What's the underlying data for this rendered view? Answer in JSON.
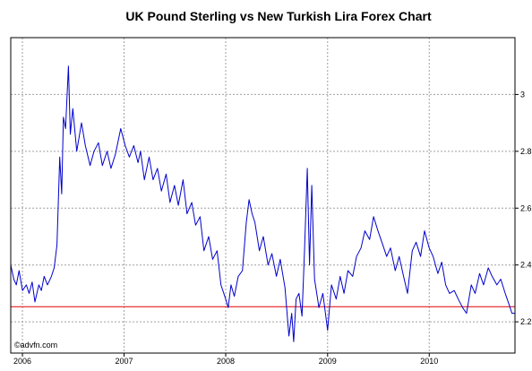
{
  "chart_data": {
    "type": "line",
    "title": "UK Pound Sterling vs New Turkish Lira Forex Chart",
    "watermark": "©advfn.com",
    "xlabel": "",
    "ylabel": "",
    "x_ticks": [
      "2006",
      "2007",
      "2008",
      "2009",
      "2010"
    ],
    "y_ticks": [
      "2.2",
      "2.4",
      "2.6",
      "2.8",
      "3"
    ],
    "y_tick_values": [
      2.2,
      2.4,
      2.6,
      2.8,
      3.0
    ],
    "xlim": [
      "2005-11-20",
      "2010-11-05"
    ],
    "ylim": [
      2.09,
      3.2
    ],
    "grid": true,
    "reference_line": {
      "value": 2.253,
      "color": "#e00000"
    },
    "series": [
      {
        "color": "#0000cc",
        "points": [
          [
            "2005-11-20",
            2.4
          ],
          [
            "2005-12-01",
            2.35
          ],
          [
            "2005-12-10",
            2.33
          ],
          [
            "2005-12-20",
            2.38
          ],
          [
            "2006-01-01",
            2.31
          ],
          [
            "2006-01-15",
            2.33
          ],
          [
            "2006-01-25",
            2.3
          ],
          [
            "2006-02-05",
            2.34
          ],
          [
            "2006-02-15",
            2.27
          ],
          [
            "2006-03-01",
            2.33
          ],
          [
            "2006-03-10",
            2.31
          ],
          [
            "2006-03-20",
            2.36
          ],
          [
            "2006-04-01",
            2.33
          ],
          [
            "2006-04-15",
            2.36
          ],
          [
            "2006-04-25",
            2.39
          ],
          [
            "2006-05-05",
            2.47
          ],
          [
            "2006-05-15",
            2.78
          ],
          [
            "2006-05-22",
            2.65
          ],
          [
            "2006-05-28",
            2.92
          ],
          [
            "2006-06-05",
            2.88
          ],
          [
            "2006-06-15",
            3.1
          ],
          [
            "2006-06-22",
            2.86
          ],
          [
            "2006-07-01",
            2.95
          ],
          [
            "2006-07-15",
            2.8
          ],
          [
            "2006-08-01",
            2.9
          ],
          [
            "2006-08-15",
            2.82
          ],
          [
            "2006-09-01",
            2.75
          ],
          [
            "2006-09-15",
            2.8
          ],
          [
            "2006-10-01",
            2.83
          ],
          [
            "2006-10-15",
            2.75
          ],
          [
            "2006-11-01",
            2.8
          ],
          [
            "2006-11-15",
            2.74
          ],
          [
            "2006-12-01",
            2.79
          ],
          [
            "2006-12-20",
            2.88
          ],
          [
            "2007-01-05",
            2.82
          ],
          [
            "2007-01-20",
            2.78
          ],
          [
            "2007-02-05",
            2.82
          ],
          [
            "2007-02-20",
            2.76
          ],
          [
            "2007-03-01",
            2.8
          ],
          [
            "2007-03-15",
            2.7
          ],
          [
            "2007-04-01",
            2.78
          ],
          [
            "2007-04-15",
            2.7
          ],
          [
            "2007-05-01",
            2.74
          ],
          [
            "2007-05-15",
            2.66
          ],
          [
            "2007-06-01",
            2.72
          ],
          [
            "2007-06-15",
            2.62
          ],
          [
            "2007-07-01",
            2.68
          ],
          [
            "2007-07-15",
            2.61
          ],
          [
            "2007-08-01",
            2.7
          ],
          [
            "2007-08-15",
            2.58
          ],
          [
            "2007-09-01",
            2.62
          ],
          [
            "2007-09-15",
            2.54
          ],
          [
            "2007-10-01",
            2.57
          ],
          [
            "2007-10-15",
            2.45
          ],
          [
            "2007-11-01",
            2.5
          ],
          [
            "2007-11-15",
            2.42
          ],
          [
            "2007-12-01",
            2.45
          ],
          [
            "2007-12-15",
            2.33
          ],
          [
            "2008-01-01",
            2.28
          ],
          [
            "2008-01-10",
            2.25
          ],
          [
            "2008-01-20",
            2.33
          ],
          [
            "2008-02-01",
            2.29
          ],
          [
            "2008-02-15",
            2.36
          ],
          [
            "2008-03-01",
            2.38
          ],
          [
            "2008-03-15",
            2.55
          ],
          [
            "2008-03-25",
            2.63
          ],
          [
            "2008-04-05",
            2.58
          ],
          [
            "2008-04-15",
            2.55
          ],
          [
            "2008-05-01",
            2.45
          ],
          [
            "2008-05-15",
            2.5
          ],
          [
            "2008-06-01",
            2.4
          ],
          [
            "2008-06-15",
            2.44
          ],
          [
            "2008-07-01",
            2.36
          ],
          [
            "2008-07-15",
            2.42
          ],
          [
            "2008-08-01",
            2.32
          ],
          [
            "2008-08-15",
            2.15
          ],
          [
            "2008-08-25",
            2.23
          ],
          [
            "2008-09-01",
            2.13
          ],
          [
            "2008-09-10",
            2.28
          ],
          [
            "2008-09-20",
            2.3
          ],
          [
            "2008-10-01",
            2.22
          ],
          [
            "2008-10-10",
            2.45
          ],
          [
            "2008-10-20",
            2.74
          ],
          [
            "2008-10-28",
            2.4
          ],
          [
            "2008-11-05",
            2.68
          ],
          [
            "2008-11-15",
            2.35
          ],
          [
            "2008-12-01",
            2.25
          ],
          [
            "2008-12-15",
            2.3
          ],
          [
            "2009-01-01",
            2.17
          ],
          [
            "2009-01-15",
            2.33
          ],
          [
            "2009-02-01",
            2.28
          ],
          [
            "2009-02-15",
            2.36
          ],
          [
            "2009-03-01",
            2.3
          ],
          [
            "2009-03-15",
            2.38
          ],
          [
            "2009-04-01",
            2.36
          ],
          [
            "2009-04-15",
            2.43
          ],
          [
            "2009-05-01",
            2.46
          ],
          [
            "2009-05-15",
            2.52
          ],
          [
            "2009-06-01",
            2.49
          ],
          [
            "2009-06-15",
            2.57
          ],
          [
            "2009-07-01",
            2.52
          ],
          [
            "2009-07-15",
            2.48
          ],
          [
            "2009-08-01",
            2.43
          ],
          [
            "2009-08-15",
            2.46
          ],
          [
            "2009-09-01",
            2.38
          ],
          [
            "2009-09-15",
            2.43
          ],
          [
            "2009-10-01",
            2.36
          ],
          [
            "2009-10-15",
            2.3
          ],
          [
            "2009-11-01",
            2.45
          ],
          [
            "2009-11-15",
            2.48
          ],
          [
            "2009-12-01",
            2.43
          ],
          [
            "2009-12-15",
            2.52
          ],
          [
            "2010-01-01",
            2.46
          ],
          [
            "2010-01-15",
            2.43
          ],
          [
            "2010-02-01",
            2.37
          ],
          [
            "2010-02-15",
            2.41
          ],
          [
            "2010-03-01",
            2.33
          ],
          [
            "2010-03-15",
            2.3
          ],
          [
            "2010-04-01",
            2.31
          ],
          [
            "2010-04-15",
            2.28
          ],
          [
            "2010-05-01",
            2.25
          ],
          [
            "2010-05-15",
            2.23
          ],
          [
            "2010-06-01",
            2.33
          ],
          [
            "2010-06-15",
            2.3
          ],
          [
            "2010-07-01",
            2.37
          ],
          [
            "2010-07-15",
            2.33
          ],
          [
            "2010-08-01",
            2.39
          ],
          [
            "2010-08-15",
            2.36
          ],
          [
            "2010-09-01",
            2.33
          ],
          [
            "2010-09-15",
            2.35
          ],
          [
            "2010-10-01",
            2.3
          ],
          [
            "2010-10-15",
            2.26
          ],
          [
            "2010-10-25",
            2.23
          ],
          [
            "2010-11-05",
            2.23
          ]
        ]
      }
    ]
  }
}
